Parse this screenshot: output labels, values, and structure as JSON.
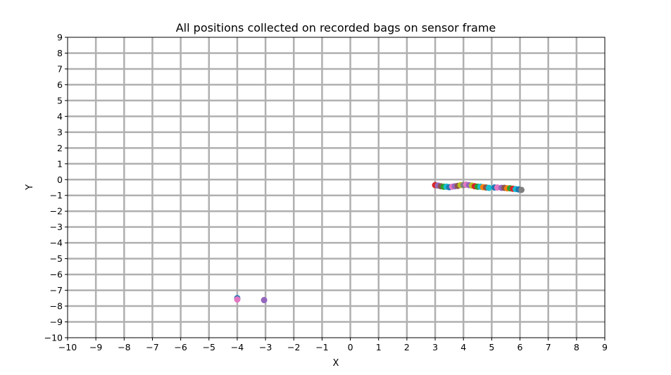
{
  "chart_data": {
    "type": "scatter",
    "title": "All positions collected on recorded bags on sensor frame",
    "xlabel": "X",
    "ylabel": "Y",
    "xlim": [
      -10,
      9
    ],
    "ylim": [
      -10,
      9
    ],
    "xticks": [
      "−10",
      "−9",
      "−8",
      "−7",
      "−6",
      "−5",
      "−4",
      "−3",
      "−2",
      "−1",
      "0",
      "1",
      "2",
      "3",
      "4",
      "5",
      "6",
      "7",
      "8",
      "9"
    ],
    "yticks": [
      "−10",
      "−9",
      "−8",
      "−7",
      "−6",
      "−5",
      "−4",
      "−3",
      "−2",
      "−1",
      "0",
      "1",
      "2",
      "3",
      "4",
      "5",
      "6",
      "7",
      "8",
      "9"
    ],
    "grid": true,
    "grid_color": "#b0b0b0",
    "palette": [
      "#1f77b4",
      "#ff7f0e",
      "#2ca02c",
      "#d62728",
      "#9467bd",
      "#8c564b",
      "#e377c2",
      "#7f7f7f",
      "#bcbd22",
      "#17becf"
    ],
    "points": [
      {
        "x": 3.0,
        "y": -0.35,
        "color": "#d62728"
      },
      {
        "x": 3.1,
        "y": -0.38,
        "color": "#9467bd"
      },
      {
        "x": 3.2,
        "y": -0.42,
        "color": "#8c564b"
      },
      {
        "x": 3.3,
        "y": -0.45,
        "color": "#2ca02c"
      },
      {
        "x": 3.4,
        "y": -0.45,
        "color": "#17becf"
      },
      {
        "x": 3.5,
        "y": -0.48,
        "color": "#1f77b4"
      },
      {
        "x": 3.6,
        "y": -0.45,
        "color": "#e377c2"
      },
      {
        "x": 3.7,
        "y": -0.42,
        "color": "#9467bd"
      },
      {
        "x": 3.8,
        "y": -0.4,
        "color": "#8c564b"
      },
      {
        "x": 3.9,
        "y": -0.35,
        "color": "#bcbd22"
      },
      {
        "x": 4.0,
        "y": -0.35,
        "color": "#7f7f7f"
      },
      {
        "x": 4.1,
        "y": -0.32,
        "color": "#e377c2"
      },
      {
        "x": 4.2,
        "y": -0.35,
        "color": "#9467bd"
      },
      {
        "x": 4.3,
        "y": -0.38,
        "color": "#bcbd22"
      },
      {
        "x": 4.4,
        "y": -0.42,
        "color": "#d62728"
      },
      {
        "x": 4.5,
        "y": -0.45,
        "color": "#2ca02c"
      },
      {
        "x": 4.6,
        "y": -0.45,
        "color": "#17becf"
      },
      {
        "x": 4.7,
        "y": -0.48,
        "color": "#ff7f0e"
      },
      {
        "x": 4.8,
        "y": -0.5,
        "color": "#8c564b"
      },
      {
        "x": 4.9,
        "y": -0.52,
        "color": "#17becf"
      },
      {
        "x": 5.1,
        "y": -0.5,
        "color": "#1f77b4"
      },
      {
        "x": 5.2,
        "y": -0.5,
        "color": "#e377c2"
      },
      {
        "x": 5.35,
        "y": -0.52,
        "color": "#9467bd"
      },
      {
        "x": 5.45,
        "y": -0.52,
        "color": "#8c564b"
      },
      {
        "x": 5.55,
        "y": -0.55,
        "color": "#ff7f0e"
      },
      {
        "x": 5.65,
        "y": -0.55,
        "color": "#2ca02c"
      },
      {
        "x": 5.75,
        "y": -0.58,
        "color": "#d62728"
      },
      {
        "x": 5.85,
        "y": -0.6,
        "color": "#17becf"
      },
      {
        "x": 5.95,
        "y": -0.62,
        "color": "#1f77b4"
      },
      {
        "x": 6.05,
        "y": -0.65,
        "color": "#7f7f7f"
      },
      {
        "x": -4.0,
        "y": -7.5,
        "color": "#1f77b4"
      },
      {
        "x": -4.0,
        "y": -7.58,
        "color": "#e377c2"
      },
      {
        "x": -3.05,
        "y": -7.62,
        "color": "#9467bd"
      }
    ]
  }
}
